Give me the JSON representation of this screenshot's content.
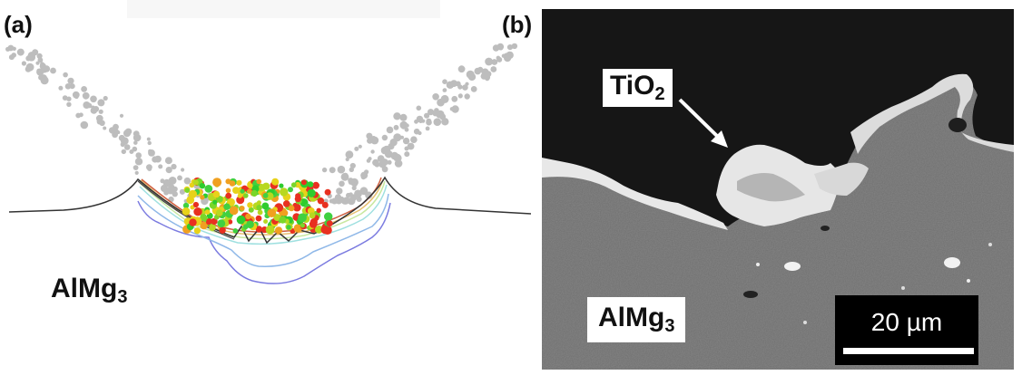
{
  "panels": {
    "a": {
      "label": "(a)",
      "material_label": {
        "main": "AlMg",
        "subscript": "3"
      }
    },
    "b": {
      "label": "(b)",
      "particle_label": {
        "main": "TiO",
        "subscript": "2"
      },
      "material_label": {
        "main": "AlMg",
        "subscript": "3"
      },
      "scale_bar": {
        "value": "20 µm"
      }
    }
  },
  "colors": {
    "grey_particles": "#bdbdbd",
    "sem_vacuum": "#161616",
    "sem_substrate": "#6e6e6e",
    "oxide": "#e6e6e6",
    "contour_outer": "#6f6fd9"
  }
}
